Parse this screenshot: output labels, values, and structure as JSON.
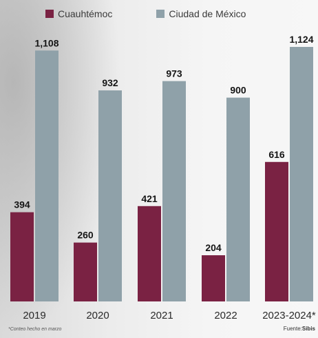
{
  "legend": {
    "items": [
      {
        "label": "Cuauhtémoc",
        "color": "#7a2243"
      },
      {
        "label": "Ciudad de México",
        "color": "#8fa1a9"
      }
    ]
  },
  "footnote": "*Conteo hecho en marzo",
  "source": {
    "prefix": "Fuente:",
    "name": "Sibis"
  },
  "chart_data": {
    "type": "bar",
    "categories": [
      "2019",
      "2020",
      "2021",
      "2022",
      "2023-2024*"
    ],
    "series": [
      {
        "name": "Cuauhtémoc",
        "color": "#7a2243",
        "values": [
          394,
          260,
          421,
          204,
          616
        ],
        "labels": [
          "394",
          "260",
          "421",
          "204",
          "616"
        ]
      },
      {
        "name": "Ciudad de México",
        "color": "#8fa1a9",
        "values": [
          1108,
          932,
          973,
          900,
          1124
        ],
        "labels": [
          "1,108",
          "932",
          "973",
          "900",
          "1,124"
        ]
      }
    ],
    "ylim": [
      0,
      1124
    ],
    "grid": false,
    "legend_position": "top"
  }
}
